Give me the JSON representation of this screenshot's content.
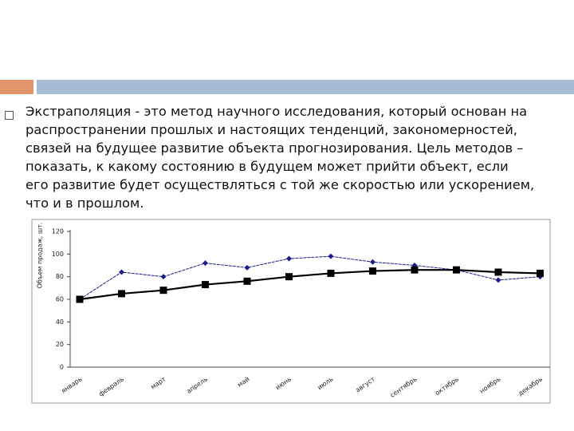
{
  "text": {
    "lines": [
      "Экстраполяция - это метод научного исследования, который основан на",
      "распространении прошлых и настоящих тенденций, закономерностей,",
      "связей на будущее развитие объекта прогнозирования. Цель методов –",
      "показать, к какому состоянию в будущем может прийти объект, если",
      "его развитие будет осуществляться с той же скоростью или ускорением,",
      "что и в прошлом."
    ]
  },
  "chart_data": {
    "type": "line",
    "y_label": "Объем продаж, шт.",
    "categories": [
      "январь",
      "февраль",
      "март",
      "апрель",
      "май",
      "июнь",
      "июль",
      "август",
      "сентябрь",
      "октябрь",
      "ноябрь",
      "декабрь"
    ],
    "series": [
      {
        "color": "#1c1c8a",
        "marker": "diamond",
        "values": [
          60,
          84,
          80,
          92,
          88,
          96,
          98,
          93,
          90,
          86,
          77,
          80
        ]
      },
      {
        "color": "#000000",
        "marker": "square",
        "values": [
          60,
          65,
          68,
          73,
          76,
          80,
          83,
          85,
          86,
          86,
          84,
          83
        ]
      }
    ],
    "ylim": [
      0,
      120
    ],
    "yticks": [
      0,
      20,
      40,
      60,
      80,
      100,
      120
    ]
  }
}
